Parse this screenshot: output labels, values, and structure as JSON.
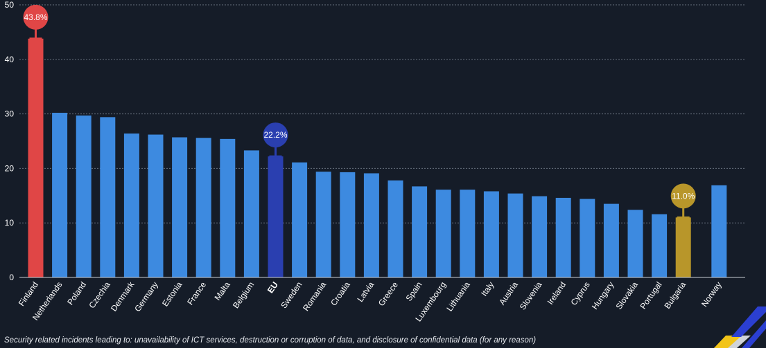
{
  "chart_data": {
    "type": "bar",
    "categories": [
      "Finland",
      "Netherlands",
      "Poland",
      "Czechia",
      "Denmark",
      "Germany",
      "Estonia",
      "France",
      "Malta",
      "Belgium",
      "EU",
      "Sweden",
      "Romania",
      "Croatia",
      "Latvia",
      "Greece",
      "Spain",
      "Luxembourg",
      "Lithuania",
      "Italy",
      "Austria",
      "Slovenia",
      "Ireland",
      "Cyprus",
      "Hungary",
      "Slovakia",
      "Portugal",
      "Bulgaria",
      "Norway"
    ],
    "values": [
      43.8,
      30.2,
      29.7,
      29.4,
      26.4,
      26.2,
      25.7,
      25.6,
      25.4,
      23.3,
      22.2,
      21.1,
      19.4,
      19.3,
      19.1,
      17.8,
      16.7,
      16.1,
      16.1,
      15.8,
      15.4,
      14.9,
      14.6,
      14.4,
      13.5,
      12.4,
      11.6,
      11.0,
      16.9
    ],
    "ylim": [
      0,
      50
    ],
    "yticks": [
      0,
      10,
      20,
      30,
      40,
      50
    ],
    "grid": true,
    "highlights": [
      {
        "category": "Finland",
        "label": "43.8%",
        "color": "#e04646"
      },
      {
        "category": "EU",
        "label": "22.2%",
        "color": "#2a3fb0"
      },
      {
        "category": "Bulgaria",
        "label": "11.0%",
        "color": "#b8962a"
      }
    ],
    "bold_categories": [
      "EU"
    ],
    "gap_before": [
      "Norway"
    ]
  },
  "colors": {
    "background": "#151c28",
    "bar": "#3d8ae0",
    "axis_text": "#ffffff",
    "grid": "#8a94a3"
  },
  "footnote": "Security related incidents leading to: unavailability of ICT services, destruction or corruption of data, and disclosure of confidential data (for any reason)"
}
